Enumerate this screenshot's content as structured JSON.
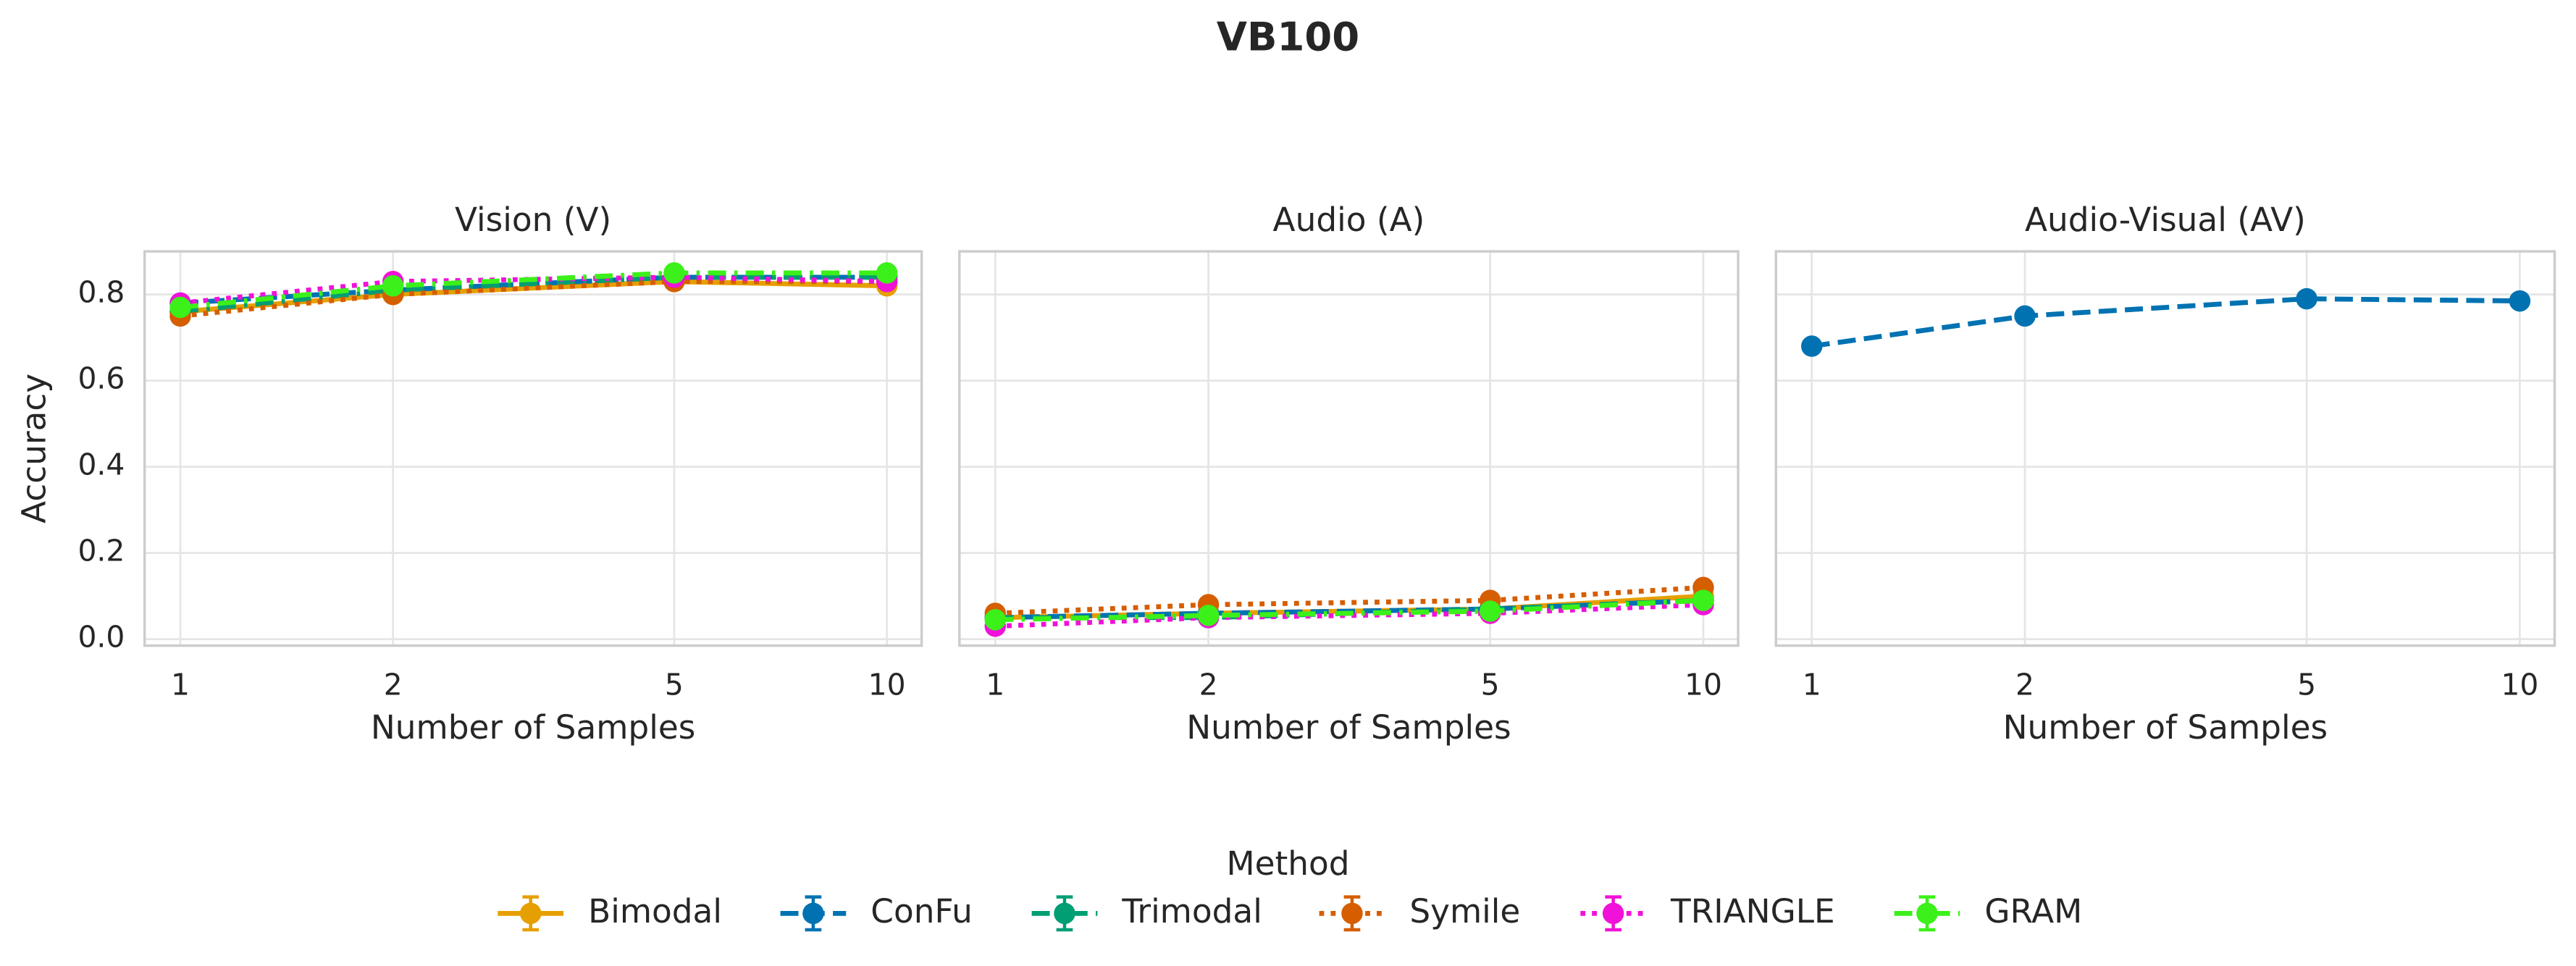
{
  "title": "VB100",
  "legend": {
    "title": "Method"
  },
  "chart_data": [
    {
      "type": "line",
      "title": "Vision (V)",
      "xlabel": "Number of Samples",
      "ylabel": "Accuracy",
      "x": [
        1,
        2,
        5,
        10
      ],
      "xscale": "log",
      "xlim": [
        0.89,
        11.2
      ],
      "xticks": [
        1,
        2,
        5,
        10
      ],
      "ylim": [
        -0.015,
        0.9
      ],
      "yticks": [
        {
          "value": 0,
          "label": "0.0"
        },
        0.2,
        0.4,
        0.6,
        0.8
      ],
      "yticklabels": true,
      "grid": true,
      "series": [
        {
          "name": "Bimodal",
          "color": "#e69f00",
          "dash": "solid",
          "values": [
            0.76,
            0.8,
            0.83,
            0.82
          ]
        },
        {
          "name": "ConFu",
          "color": "#0072b2",
          "dash": "dashed",
          "values": [
            0.78,
            0.81,
            0.84,
            0.84
          ]
        },
        {
          "name": "Trimodal",
          "color": "#009e73",
          "dash": "dashdot",
          "values": [
            0.76,
            0.81,
            0.84,
            0.84
          ]
        },
        {
          "name": "Symile",
          "color": "#d55e00",
          "dash": "dotted",
          "values": [
            0.75,
            0.8,
            0.83,
            0.83
          ]
        },
        {
          "name": "TRIANGLE",
          "color": "#f012d8",
          "dash": "dotted",
          "values": [
            0.78,
            0.83,
            0.84,
            0.83
          ]
        },
        {
          "name": "GRAM",
          "color": "#3cf01a",
          "dash": "dashdot",
          "values": [
            0.77,
            0.82,
            0.85,
            0.85
          ]
        }
      ]
    },
    {
      "type": "line",
      "title": "Audio (A)",
      "xlabel": "Number of Samples",
      "x": [
        1,
        2,
        5,
        10
      ],
      "xscale": "log",
      "xlim": [
        0.89,
        11.2
      ],
      "xticks": [
        1,
        2,
        5,
        10
      ],
      "ylim": [
        -0.015,
        0.9
      ],
      "yticks": [
        0,
        0.2,
        0.4,
        0.6,
        0.8
      ],
      "yticklabels": false,
      "grid": true,
      "series": [
        {
          "name": "Bimodal",
          "color": "#e69f00",
          "dash": "solid",
          "values": [
            0.05,
            0.06,
            0.07,
            0.1
          ]
        },
        {
          "name": "ConFu",
          "color": "#0072b2",
          "dash": "dashed",
          "values": [
            0.05,
            0.06,
            0.07,
            0.09
          ]
        },
        {
          "name": "Trimodal",
          "color": "#009e73",
          "dash": "dashdot",
          "values": [
            0.05,
            0.05,
            0.07,
            0.09
          ]
        },
        {
          "name": "Symile",
          "color": "#d55e00",
          "dash": "dotted",
          "values": [
            0.06,
            0.08,
            0.09,
            0.12
          ]
        },
        {
          "name": "TRIANGLE",
          "color": "#f012d8",
          "dash": "dotted",
          "values": [
            0.03,
            0.05,
            0.06,
            0.08
          ]
        },
        {
          "name": "GRAM",
          "color": "#3cf01a",
          "dash": "dashdot",
          "values": [
            0.045,
            0.055,
            0.065,
            0.09
          ]
        }
      ]
    },
    {
      "type": "line",
      "title": "Audio-Visual (AV)",
      "xlabel": "Number of Samples",
      "x": [
        1,
        2,
        5,
        10
      ],
      "xscale": "log",
      "xlim": [
        0.89,
        11.2
      ],
      "xticks": [
        1,
        2,
        5,
        10
      ],
      "ylim": [
        -0.015,
        0.9
      ],
      "yticks": [
        0,
        0.2,
        0.4,
        0.6,
        0.8
      ],
      "yticklabels": false,
      "grid": true,
      "series": [
        {
          "name": "ConFu",
          "color": "#0072b2",
          "dash": "dashed",
          "values": [
            0.68,
            0.75,
            0.79,
            0.785
          ]
        }
      ]
    }
  ]
}
